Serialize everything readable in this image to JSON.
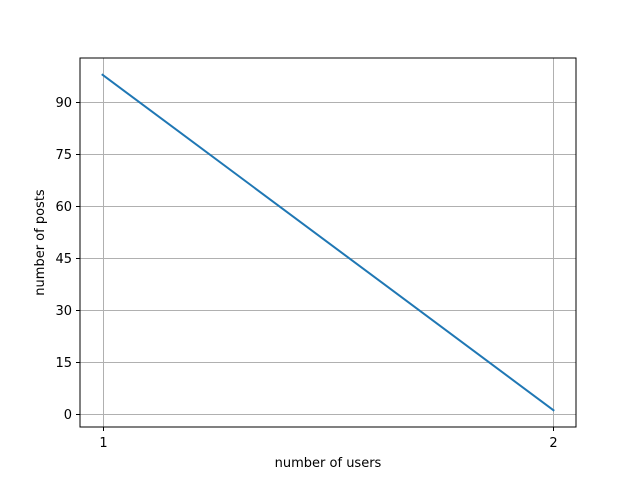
{
  "chart_data": {
    "type": "line",
    "title": "",
    "xlabel": "number of users",
    "ylabel": "number of posts",
    "x": [
      1,
      2
    ],
    "series": [
      {
        "values": [
          98,
          1
        ],
        "color": "#1f77b4"
      }
    ],
    "xlim": [
      0.95,
      2.05
    ],
    "ylim": [
      -3.85,
      102.85
    ],
    "xticks": [
      1,
      2
    ],
    "xtick_labels": [
      "1",
      "2"
    ],
    "yticks": [
      0,
      15,
      30,
      45,
      60,
      75,
      90
    ],
    "ytick_labels": [
      "0",
      "15",
      "30",
      "45",
      "60",
      "75",
      "90"
    ],
    "grid": true,
    "grid_color": "#b0b0b0",
    "legend": "none"
  }
}
